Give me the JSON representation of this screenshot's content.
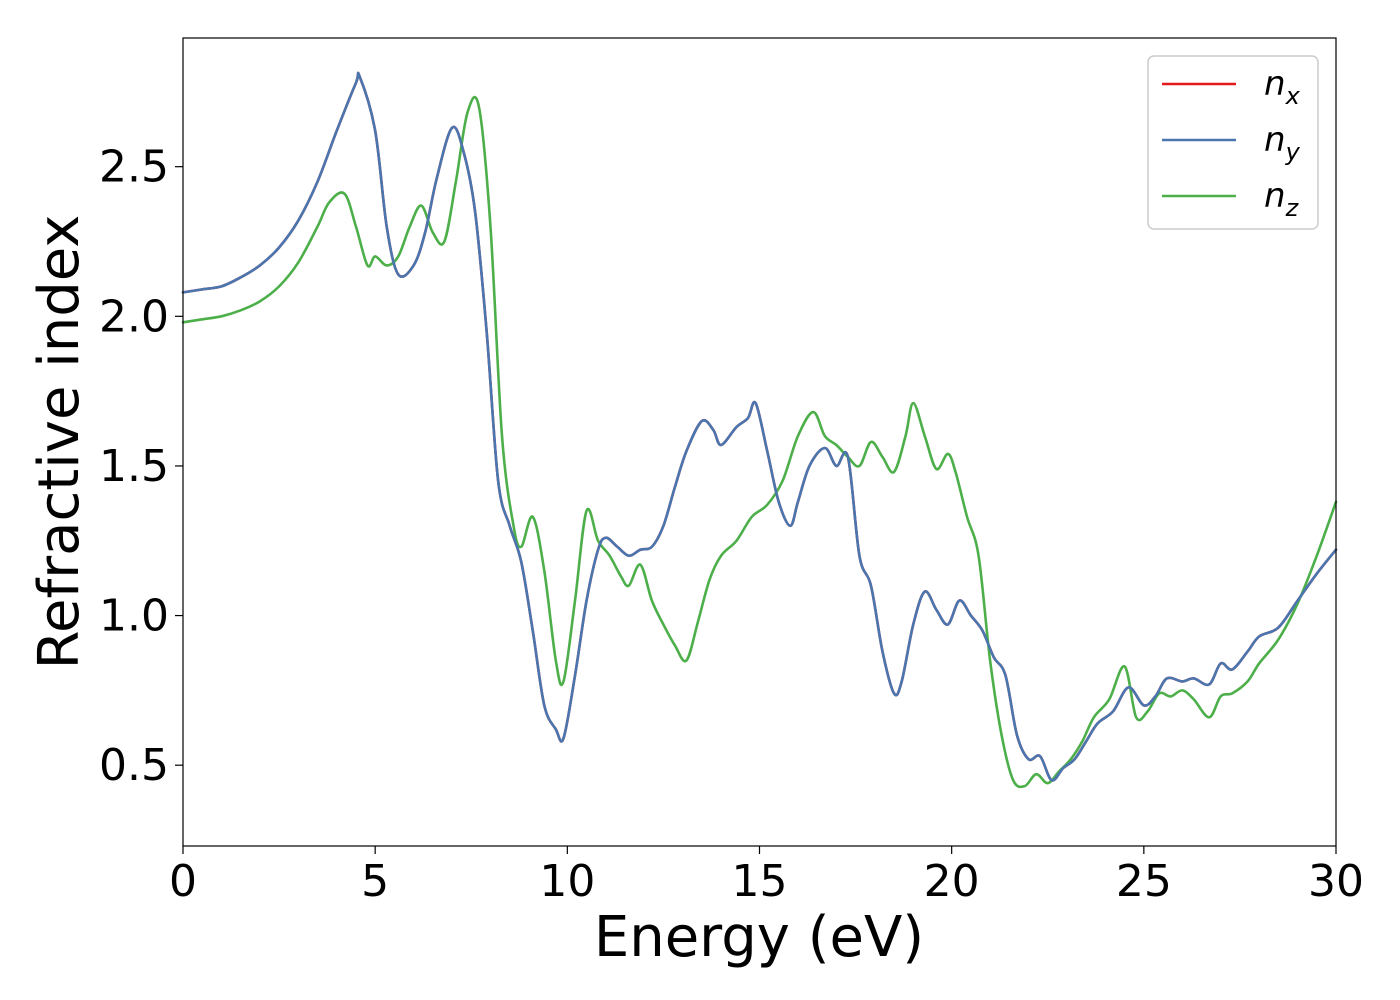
{
  "chart_data": {
    "type": "line",
    "xlabel": "Energy (eV)",
    "ylabel": "Refractive index",
    "xlim": [
      0,
      30
    ],
    "ylim": [
      0.23,
      2.93
    ],
    "xticks": [
      0,
      5,
      10,
      15,
      20,
      25,
      30
    ],
    "yticks": [
      0.5,
      1.0,
      1.5,
      2.0,
      2.5
    ],
    "xtick_labels": [
      "0",
      "5",
      "10",
      "15",
      "20",
      "25",
      "30"
    ],
    "ytick_labels": [
      "0.5",
      "1.0",
      "1.5",
      "2.0",
      "2.5"
    ],
    "grid": false,
    "legend_position": "top-right",
    "series": [
      {
        "name": "n",
        "subscript": "x",
        "color": "#e41a1c",
        "x": [
          0,
          0.5,
          1,
          1.5,
          2,
          2.5,
          3,
          3.5,
          4,
          4.5,
          4.6,
          5,
          5.3,
          5.6,
          6,
          6.3,
          6.6,
          7,
          7.3,
          7.6,
          7.9,
          8.2,
          8.5,
          8.8,
          9.1,
          9.4,
          9.7,
          9.9,
          10.2,
          10.5,
          10.8,
          11,
          11.3,
          11.6,
          11.9,
          12.2,
          12.5,
          12.8,
          13.1,
          13.5,
          13.8,
          14,
          14.4,
          14.7,
          14.9,
          15.2,
          15.5,
          15.8,
          16,
          16.3,
          16.7,
          17,
          17.3,
          17.6,
          17.9,
          18.2,
          18.5,
          18.7,
          19,
          19.3,
          19.6,
          19.9,
          20.2,
          20.5,
          20.8,
          21.1,
          21.4,
          21.7,
          22,
          22.3,
          22.6,
          22.9,
          23.2,
          23.5,
          23.8,
          24.2,
          24.6,
          25,
          25.3,
          25.6,
          26,
          26.3,
          26.7,
          27,
          27.3,
          27.7,
          28,
          28.5,
          29,
          29.5,
          30
        ],
        "y": [
          2.08,
          2.09,
          2.1,
          2.13,
          2.17,
          2.23,
          2.32,
          2.45,
          2.62,
          2.78,
          2.8,
          2.62,
          2.3,
          2.14,
          2.17,
          2.28,
          2.46,
          2.63,
          2.55,
          2.35,
          1.95,
          1.45,
          1.3,
          1.18,
          0.95,
          0.7,
          0.62,
          0.59,
          0.8,
          1.05,
          1.22,
          1.26,
          1.23,
          1.2,
          1.22,
          1.23,
          1.3,
          1.43,
          1.55,
          1.65,
          1.62,
          1.57,
          1.63,
          1.66,
          1.71,
          1.55,
          1.38,
          1.3,
          1.38,
          1.5,
          1.56,
          1.5,
          1.53,
          1.2,
          1.1,
          0.88,
          0.74,
          0.78,
          0.97,
          1.08,
          1.02,
          0.97,
          1.05,
          1.0,
          0.95,
          0.86,
          0.8,
          0.6,
          0.52,
          0.53,
          0.45,
          0.49,
          0.52,
          0.58,
          0.64,
          0.68,
          0.76,
          0.7,
          0.73,
          0.79,
          0.78,
          0.79,
          0.77,
          0.84,
          0.82,
          0.88,
          0.93,
          0.96,
          1.05,
          1.14,
          1.22
        ]
      },
      {
        "name": "n",
        "subscript": "y",
        "color": "#4a76b0",
        "x": [
          0,
          0.5,
          1,
          1.5,
          2,
          2.5,
          3,
          3.5,
          4,
          4.5,
          4.6,
          5,
          5.3,
          5.6,
          6,
          6.3,
          6.6,
          7,
          7.3,
          7.6,
          7.9,
          8.2,
          8.5,
          8.8,
          9.1,
          9.4,
          9.7,
          9.9,
          10.2,
          10.5,
          10.8,
          11,
          11.3,
          11.6,
          11.9,
          12.2,
          12.5,
          12.8,
          13.1,
          13.5,
          13.8,
          14,
          14.4,
          14.7,
          14.9,
          15.2,
          15.5,
          15.8,
          16,
          16.3,
          16.7,
          17,
          17.3,
          17.6,
          17.9,
          18.2,
          18.5,
          18.7,
          19,
          19.3,
          19.6,
          19.9,
          20.2,
          20.5,
          20.8,
          21.1,
          21.4,
          21.7,
          22,
          22.3,
          22.6,
          22.9,
          23.2,
          23.5,
          23.8,
          24.2,
          24.6,
          25,
          25.3,
          25.6,
          26,
          26.3,
          26.7,
          27,
          27.3,
          27.7,
          28,
          28.5,
          29,
          29.5,
          30
        ],
        "y": [
          2.08,
          2.09,
          2.1,
          2.13,
          2.17,
          2.23,
          2.32,
          2.45,
          2.62,
          2.78,
          2.8,
          2.62,
          2.3,
          2.14,
          2.17,
          2.28,
          2.46,
          2.63,
          2.55,
          2.35,
          1.95,
          1.45,
          1.3,
          1.18,
          0.95,
          0.7,
          0.62,
          0.59,
          0.8,
          1.05,
          1.22,
          1.26,
          1.23,
          1.2,
          1.22,
          1.23,
          1.3,
          1.43,
          1.55,
          1.65,
          1.62,
          1.57,
          1.63,
          1.66,
          1.71,
          1.55,
          1.38,
          1.3,
          1.38,
          1.5,
          1.56,
          1.5,
          1.53,
          1.2,
          1.1,
          0.88,
          0.74,
          0.78,
          0.97,
          1.08,
          1.02,
          0.97,
          1.05,
          1.0,
          0.95,
          0.86,
          0.8,
          0.6,
          0.52,
          0.53,
          0.45,
          0.49,
          0.52,
          0.58,
          0.64,
          0.68,
          0.76,
          0.7,
          0.73,
          0.79,
          0.78,
          0.79,
          0.77,
          0.84,
          0.82,
          0.88,
          0.93,
          0.96,
          1.05,
          1.14,
          1.22
        ]
      },
      {
        "name": "n",
        "subscript": "z",
        "color": "#4daf4a",
        "x": [
          0,
          0.5,
          1,
          1.5,
          2,
          2.5,
          3,
          3.5,
          3.8,
          4.2,
          4.5,
          4.8,
          5,
          5.3,
          5.6,
          5.9,
          6.2,
          6.5,
          6.8,
          7.1,
          7.4,
          7.7,
          8.0,
          8.3,
          8.6,
          8.8,
          9.1,
          9.4,
          9.7,
          9.9,
          10.2,
          10.5,
          10.8,
          11.1,
          11.4,
          11.6,
          11.9,
          12.2,
          12.5,
          12.8,
          13.1,
          13.4,
          13.7,
          14,
          14.4,
          14.8,
          15.2,
          15.6,
          16,
          16.4,
          16.7,
          17,
          17.3,
          17.6,
          17.9,
          18.2,
          18.5,
          18.8,
          19.0,
          19.3,
          19.6,
          19.9,
          20.1,
          20.4,
          20.7,
          21.0,
          21.3,
          21.6,
          21.9,
          22.2,
          22.5,
          22.8,
          23.1,
          23.4,
          23.7,
          24.1,
          24.5,
          24.8,
          25.1,
          25.4,
          25.7,
          26.0,
          26.3,
          26.7,
          27,
          27.3,
          27.7,
          28,
          28.5,
          29,
          29.5,
          30
        ],
        "y": [
          1.98,
          1.99,
          2.0,
          2.02,
          2.05,
          2.1,
          2.18,
          2.3,
          2.38,
          2.41,
          2.3,
          2.17,
          2.2,
          2.17,
          2.2,
          2.3,
          2.37,
          2.28,
          2.25,
          2.45,
          2.68,
          2.7,
          2.3,
          1.6,
          1.3,
          1.23,
          1.33,
          1.15,
          0.85,
          0.78,
          1.05,
          1.35,
          1.25,
          1.2,
          1.13,
          1.1,
          1.17,
          1.05,
          0.97,
          0.9,
          0.85,
          0.98,
          1.12,
          1.2,
          1.25,
          1.33,
          1.37,
          1.45,
          1.6,
          1.68,
          1.6,
          1.57,
          1.53,
          1.5,
          1.58,
          1.53,
          1.48,
          1.6,
          1.71,
          1.6,
          1.49,
          1.54,
          1.48,
          1.33,
          1.2,
          0.85,
          0.6,
          0.45,
          0.43,
          0.47,
          0.44,
          0.48,
          0.52,
          0.58,
          0.66,
          0.72,
          0.83,
          0.66,
          0.68,
          0.74,
          0.73,
          0.75,
          0.72,
          0.66,
          0.73,
          0.74,
          0.78,
          0.84,
          0.92,
          1.04,
          1.2,
          1.38
        ]
      }
    ]
  }
}
